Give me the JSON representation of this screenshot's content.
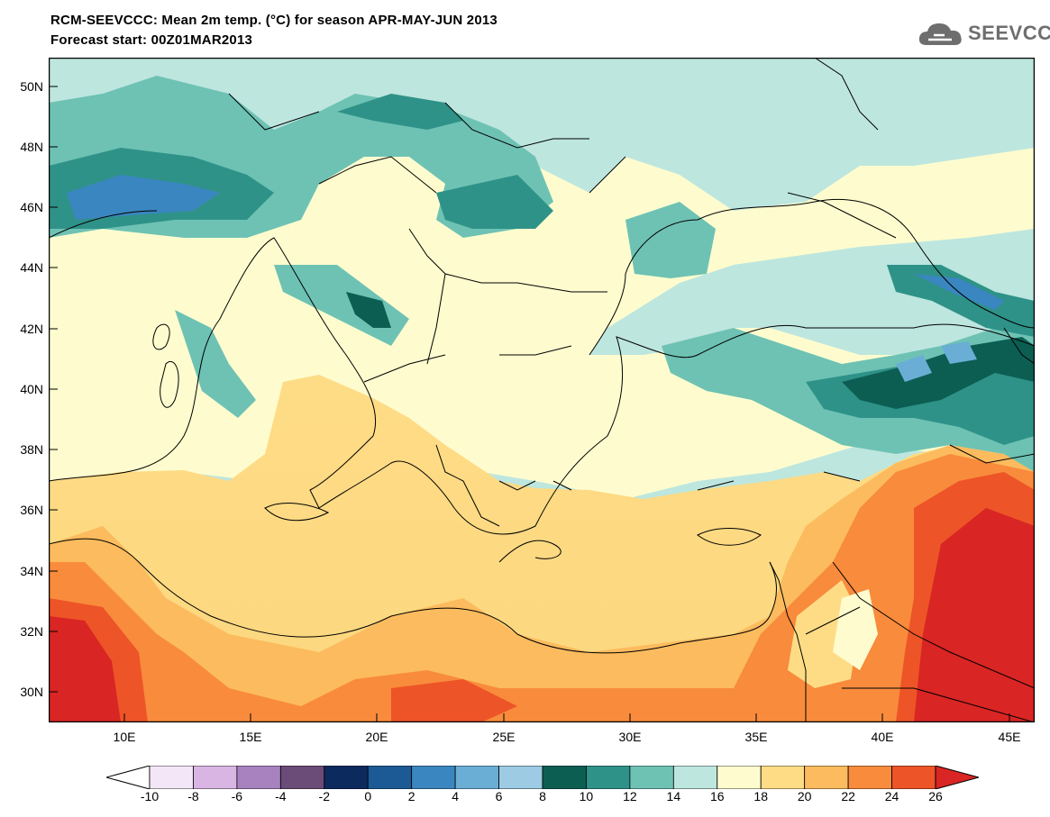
{
  "title_line1": "RCM-SEEVCCC: Mean 2m temp. (°C) for season APR-MAY-JUN 2013",
  "title_line2": "Forecast start: 00Z01MAR2013",
  "logo_text": "SEEVCCC",
  "map": {
    "lon_range": [
      7,
      46
    ],
    "lat_range": [
      29,
      51
    ],
    "lat_labels": [
      "50N",
      "48N",
      "46N",
      "44N",
      "42N",
      "40N",
      "38N",
      "36N",
      "34N",
      "32N",
      "30N"
    ],
    "lon_labels": [
      "10E",
      "15E",
      "20E",
      "25E",
      "30E",
      "35E",
      "40E",
      "45E"
    ]
  },
  "colorbar": {
    "labels": [
      "-10",
      "-8",
      "-6",
      "-4",
      "-2",
      "0",
      "2",
      "4",
      "6",
      "8",
      "10",
      "12",
      "14",
      "16",
      "18",
      "20",
      "22",
      "24",
      "26"
    ],
    "colors": [
      "#f3e6f6",
      "#d8b5e3",
      "#a882bf",
      "#6b4b78",
      "#0d2a5e",
      "#1c5a95",
      "#3a86c0",
      "#6aaed5",
      "#9ccbe3",
      "#0c5e53",
      "#2f9288",
      "#6ec2b4",
      "#bde6df",
      "#fefcce",
      "#fedc86",
      "#fcbb5e",
      "#f88b3c",
      "#ed5427"
    ],
    "under_color": "#ffffff",
    "over_color": "#d92523"
  }
}
